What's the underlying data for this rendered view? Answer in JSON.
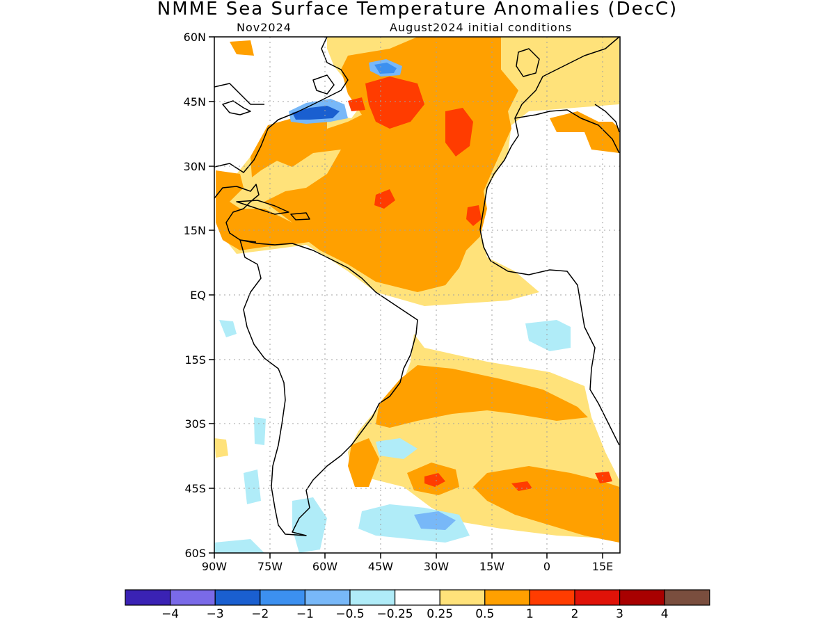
{
  "title": "NMME Sea Surface Temperature Anomalies (DecC)",
  "subtitle_left": "Nov2024",
  "subtitle_right": "August2024 initial conditions",
  "lat_ticks": [
    "60N",
    "45N",
    "30N",
    "15N",
    "EQ",
    "15S",
    "30S",
    "45S",
    "60S"
  ],
  "lon_ticks": [
    "90W",
    "75W",
    "60W",
    "45W",
    "30W",
    "15W",
    "0",
    "15E"
  ],
  "colorbar": {
    "colors": [
      "#3a22b4",
      "#7a6ae8",
      "#1a5fd0",
      "#3c90f0",
      "#78b8f8",
      "#b0ecf8",
      "#ffffff",
      "#ffe27a",
      "#ffa000",
      "#ff3c00",
      "#e01208",
      "#a80000",
      "#7a4e3e"
    ],
    "labels": [
      "−4",
      "−3",
      "−2",
      "−1",
      "−0.5",
      "−0.25",
      "0.25",
      "0.5",
      "1",
      "2",
      "3",
      "4"
    ]
  },
  "colors": {
    "land_outline": "#000000",
    "anomaly_0_25_0_5": "#ffe27a",
    "anomaly_0_5_1": "#ffa000",
    "anomaly_1_2": "#ff3c00",
    "anomaly_neg_0_25_0_5": "#b0ecf8",
    "anomaly_neg_0_5_1": "#78b8f8",
    "anomaly_neg_1_2": "#3c90f0",
    "anomaly_neg_2_3": "#1a5fd0"
  }
}
